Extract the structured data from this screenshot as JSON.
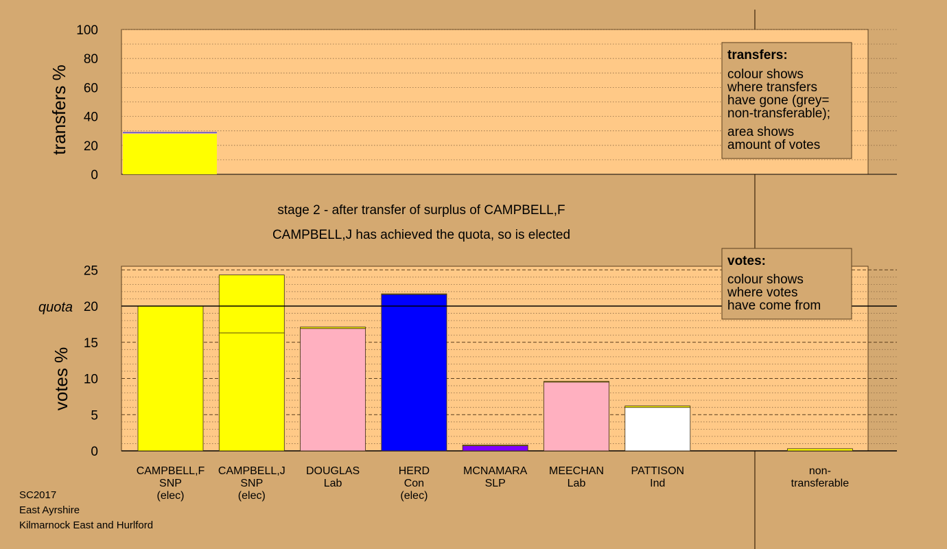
{
  "colors": {
    "background": "#d4a971",
    "plot_background": "#ffc987",
    "snp": "#ffff00",
    "lab": "#ffb0c0",
    "con": "#0000ff",
    "slp": "#8000ff",
    "ind": "#ffffff",
    "non_transferable": "#a0a0a0"
  },
  "chart_data": [
    {
      "type": "bar",
      "name": "transfers",
      "ylabel": "transfers %",
      "ylim": [
        0,
        100
      ],
      "yticks": [
        0,
        20,
        40,
        60,
        80,
        100
      ],
      "grid": true,
      "bars": [
        {
          "source": "CAMPBELL,F",
          "segments": [
            {
              "party": "SNP",
              "color": "#ffff00",
              "value": 28
            },
            {
              "party": "Lab",
              "color": "#ffb0c0",
              "value": 0.3
            },
            {
              "party": "non-transferable",
              "color": "#a0a0a0",
              "value": 0.5
            },
            {
              "party": "Con",
              "color": "#0000ff",
              "value": 0.3
            }
          ]
        }
      ],
      "legend": {
        "placement": "top-right",
        "title": "transfers:",
        "lines": [
          "colour shows",
          "where transfers",
          "have gone (grey=",
          "non-transferable);",
          "",
          "area shows",
          "amount of votes"
        ]
      }
    },
    {
      "type": "bar",
      "name": "votes",
      "ylabel": "votes %",
      "ylim": [
        0,
        25.5
      ],
      "yticks": [
        0,
        5,
        10,
        15,
        20,
        25
      ],
      "quota": 20,
      "quota_label": "quota",
      "grid": true,
      "categories": [
        {
          "line1": "CAMPBELL,F",
          "line2": "SNP",
          "line3": "(elec)"
        },
        {
          "line1": "CAMPBELL,J",
          "line2": "SNP",
          "line3": "(elec)"
        },
        {
          "line1": "DOUGLAS",
          "line2": "Lab",
          "line3": ""
        },
        {
          "line1": "HERD",
          "line2": "Con",
          "line3": "(elec)"
        },
        {
          "line1": "MCNAMARA",
          "line2": "SLP",
          "line3": ""
        },
        {
          "line1": "MEECHAN",
          "line2": "Lab",
          "line3": ""
        },
        {
          "line1": "PATTISON",
          "line2": "Ind",
          "line3": ""
        },
        {
          "line1": "",
          "line2": "",
          "line3": ""
        },
        {
          "line1": "non-",
          "line2": "transferable",
          "line3": ""
        }
      ],
      "bars": [
        {
          "segments": [
            {
              "party": "SNP",
              "color": "#ffff00",
              "value": 20.0
            }
          ]
        },
        {
          "segments": [
            {
              "party": "SNP",
              "color": "#ffff00",
              "value": 16.3
            },
            {
              "party": "SNP",
              "color": "#ffff00",
              "value": 8.0
            }
          ]
        },
        {
          "segments": [
            {
              "party": "Lab",
              "color": "#ffb0c0",
              "value": 16.9
            },
            {
              "party": "SNP",
              "color": "#ffff00",
              "value": 0.2
            }
          ]
        },
        {
          "segments": [
            {
              "party": "Con",
              "color": "#0000ff",
              "value": 21.6
            },
            {
              "party": "SNP",
              "color": "#ffff00",
              "value": 0.1
            }
          ]
        },
        {
          "segments": [
            {
              "party": "SLP",
              "color": "#8000ff",
              "value": 0.7
            },
            {
              "party": "SNP",
              "color": "#ffff00",
              "value": 0.1
            }
          ]
        },
        {
          "segments": [
            {
              "party": "Lab",
              "color": "#ffb0c0",
              "value": 9.5
            },
            {
              "party": "SNP",
              "color": "#ffff00",
              "value": 0.1
            }
          ]
        },
        {
          "segments": [
            {
              "party": "Ind",
              "color": "#ffffff",
              "value": 6.0
            },
            {
              "party": "SNP",
              "color": "#ffff00",
              "value": 0.2
            }
          ]
        },
        {
          "segments": []
        },
        {
          "segments": [
            {
              "party": "SNP",
              "color": "#ffff00",
              "value": 0.3
            }
          ]
        }
      ],
      "legend": {
        "placement": "top-right",
        "title": "votes:",
        "lines": [
          "colour shows",
          "where votes",
          "have come from"
        ]
      }
    }
  ],
  "captions": {
    "stage": "stage 2 - after transfer of surplus of CAMPBELL,F",
    "elected": "CAMPBELL,J has achieved the quota, so is elected"
  },
  "footer": {
    "line1": "SC2017",
    "line2": "East Ayrshire",
    "line3": "Kilmarnock East and Hurlford"
  }
}
